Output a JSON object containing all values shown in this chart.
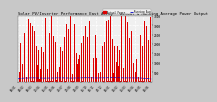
{
  "title": "Solar PV/Inverter Performance East Array   Actual & Running Average Power Output",
  "title_fontsize": 2.8,
  "background_color": "#c8c8c8",
  "plot_bg_color": "#f0f0f0",
  "bar_color": "#dd0000",
  "avg_color": "#0000cc",
  "grid_color": "#ffffff",
  "legend_bar_color": "#dd0000",
  "legend_line_color": "#0000cc",
  "ylim": [
    0,
    3500
  ],
  "yticks": [
    500,
    1000,
    1500,
    2000,
    2500,
    3000,
    3500
  ],
  "n_bars": 500,
  "num_days": 70,
  "avg_level": 120,
  "seed": 17
}
